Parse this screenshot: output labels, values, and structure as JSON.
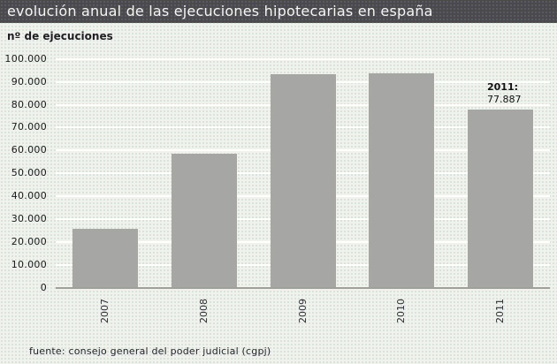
{
  "header": {
    "title": "evolución anual de las ejecuciones hipotecarias en españa"
  },
  "axis": {
    "unit_label": "nº de ejecuciones"
  },
  "annotation": {
    "bold_line": "2011:",
    "value_line": "77.887"
  },
  "footer": {
    "source": "fuente: consejo general del poder judicial (cgpj)"
  },
  "colors": {
    "title_bar_bg": "#4a4a4b",
    "title_text": "#f5f5f3",
    "bar_fill": "#a6a7a4",
    "background": "#f1f2ec",
    "background_dots": "#cde0d8",
    "gridline": "#ffffff",
    "axis_line": "#a0a09b",
    "text": "#19191d"
  },
  "chart_data": {
    "type": "bar",
    "title": "evolución anual de las ejecuciones hipotecarias en españa",
    "ylabel": "nº de ejecuciones",
    "categories": [
      "2007",
      "2008",
      "2009",
      "2010",
      "2011"
    ],
    "values": [
      25900,
      58700,
      93300,
      93600,
      77887
    ],
    "ylim": [
      0,
      100000
    ],
    "ytick_step": 10000,
    "ytick_labels": [
      "0",
      "10.000",
      "20.000",
      "30.000",
      "40.000",
      "50.000",
      "60.000",
      "70.000",
      "80.000",
      "90.000",
      "100.000"
    ],
    "grid": true,
    "legend": "none",
    "annotation_text": "2011: 77.887",
    "annotation_target": "2011",
    "source": "fuente: consejo general del poder judicial (cgpj)"
  }
}
